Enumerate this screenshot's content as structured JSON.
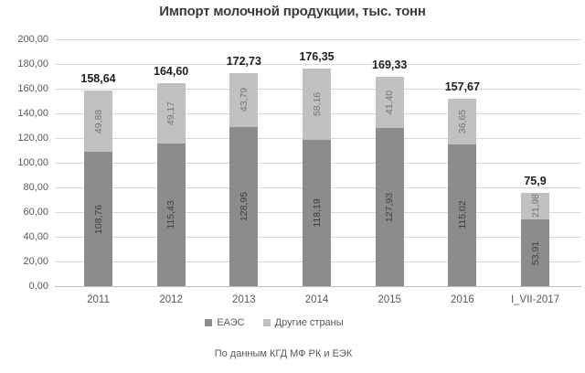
{
  "title": "Импорт молочной продукции, тыс. тонн",
  "footer": "По данным КГД МФ РК и ЕЭК",
  "colors": {
    "series_eaes": "#8c8c8c",
    "series_other": "#c1c1c1",
    "label_on_dark": "#3f3f3f",
    "label_on_light": "#757575",
    "gridline": "#d9d9d9",
    "axis_line": "#bfbfbf",
    "axis_text": "#595959",
    "total_text": "#1f1f1f"
  },
  "chart_data": {
    "type": "bar",
    "stacked": true,
    "title": "Импорт молочной продукции, тыс. тонн",
    "xlabel": "",
    "ylabel": "",
    "ylim": [
      0,
      200
    ],
    "ytick_step": 20,
    "ytick_labels": [
      "0,00",
      "20,00",
      "40,00",
      "60,00",
      "80,00",
      "100,00",
      "120,00",
      "140,00",
      "160,00",
      "180,00",
      "200,00"
    ],
    "grid": true,
    "legend_position": "bottom",
    "categories": [
      "2011",
      "2012",
      "2013",
      "2014",
      "2015",
      "2016",
      "I_VII-2017"
    ],
    "series": [
      {
        "name": "ЕАЭС",
        "color": "#8c8c8c",
        "label_color": "#3f3f3f",
        "values": [
          108.76,
          115.43,
          128.95,
          118.19,
          127.93,
          115.02,
          53.91
        ],
        "labels": [
          "108,76",
          "115,43",
          "128,95",
          "118,19",
          "127,93",
          "115,02",
          "53,91"
        ]
      },
      {
        "name": "Другие страны",
        "color": "#c1c1c1",
        "label_color": "#757575",
        "values": [
          49.88,
          49.17,
          43.79,
          58.16,
          41.4,
          36.65,
          21.98
        ],
        "labels": [
          "49,88",
          "49,17",
          "43,79",
          "58,16",
          "41,40",
          "36,65",
          "21,98"
        ]
      }
    ],
    "totals": [
      158.64,
      164.6,
      172.73,
      176.35,
      169.33,
      157.67,
      75.9
    ],
    "total_labels": [
      "158,64",
      "164,60",
      "172,73",
      "176,35",
      "169,33",
      "157,67",
      "75,9"
    ]
  }
}
